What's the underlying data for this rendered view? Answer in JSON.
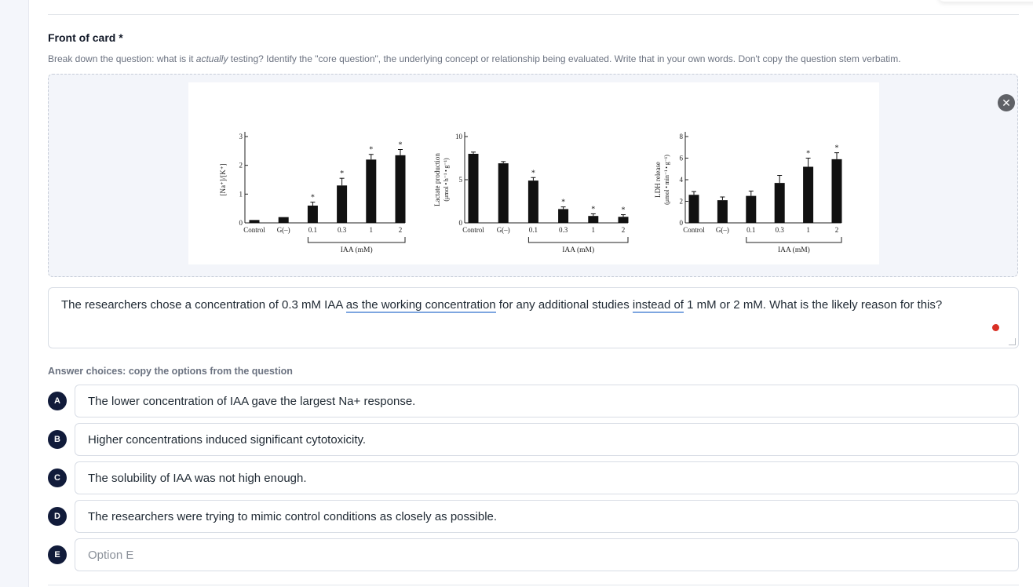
{
  "card": {
    "title": "Front of card *",
    "helper_pre": "Break down the question: what is it ",
    "helper_em": "actually",
    "helper_post": " testing? Identify the \"core question\", the underlying concept or relationship being evaluated. Write that in your own words. Don't copy the question stem verbatim.",
    "remove_icon": "close-icon",
    "question_parts": [
      "The researchers chose a concentration of 0.3 mM IAA ",
      "as the working concentration",
      " for any additional studies ",
      "instead of",
      " 1 mM or 2 mM. What is the likely reason for this?"
    ]
  },
  "answers": {
    "label": "Answer choices: copy the options from the question",
    "choices": [
      {
        "letter": "A",
        "value": "The lower concentration of IAA gave the largest Na+ response.",
        "placeholder": ""
      },
      {
        "letter": "B",
        "value": "Higher concentrations induced significant cytotoxicity.",
        "placeholder": ""
      },
      {
        "letter": "C",
        "value": "The solubility of IAA was not high enough.",
        "placeholder": ""
      },
      {
        "letter": "D",
        "value": "The researchers were trying to mimic control conditions as closely as possible.",
        "placeholder": ""
      },
      {
        "letter": "E",
        "value": "",
        "placeholder": "Option E"
      }
    ]
  },
  "chart_data": [
    {
      "type": "bar",
      "categories": [
        "Control",
        "G(–)",
        "0.1",
        "0.3",
        "1",
        "2"
      ],
      "values": [
        0.1,
        0.2,
        0.6,
        1.3,
        2.2,
        2.35
      ],
      "errors": [
        0.02,
        0.02,
        0.12,
        0.25,
        0.18,
        0.2
      ],
      "significant": [
        false,
        false,
        true,
        true,
        true,
        true
      ],
      "ylabel": "[Na⁺]/[K⁺]",
      "yticks": [
        "0",
        "1",
        "2",
        "3"
      ],
      "ylim": [
        0,
        3
      ],
      "group_label": "IAA (mM)"
    },
    {
      "type": "bar",
      "categories": [
        "Control",
        "G(–)",
        "0.1",
        "0.3",
        "1",
        "2"
      ],
      "values": [
        8.0,
        6.9,
        4.9,
        1.6,
        0.8,
        0.7
      ],
      "errors": [
        0.2,
        0.2,
        0.35,
        0.25,
        0.25,
        0.25
      ],
      "significant": [
        false,
        false,
        true,
        true,
        true,
        true
      ],
      "ylabel": "Lactate production",
      "ylabel2": "(μmol • h⁻¹ • g⁻¹)",
      "yticks": [
        "0",
        "5",
        "10"
      ],
      "ylim": [
        0,
        10
      ],
      "group_label": "IAA (mM)"
    },
    {
      "type": "bar",
      "categories": [
        "Control",
        "G(–)",
        "0.1",
        "0.3",
        "1",
        "2"
      ],
      "values": [
        2.6,
        2.1,
        2.5,
        3.7,
        5.2,
        5.9
      ],
      "errors": [
        0.3,
        0.3,
        0.45,
        0.7,
        0.8,
        0.6
      ],
      "significant": [
        false,
        false,
        false,
        false,
        true,
        true
      ],
      "ylabel": "LDH release",
      "ylabel2": "(μmol • min⁻¹ • g⁻¹)",
      "yticks": [
        "0",
        "2",
        "4",
        "6",
        "8"
      ],
      "ylim": [
        0,
        8
      ],
      "group_label": "IAA (mM)"
    }
  ]
}
